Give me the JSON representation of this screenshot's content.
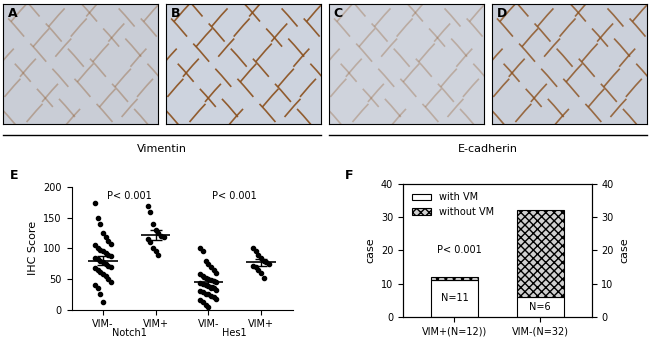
{
  "images": [
    {
      "label": "A"
    },
    {
      "label": "B"
    },
    {
      "label": "C"
    },
    {
      "label": "D"
    }
  ],
  "image_groups": [
    {
      "label": "Vimentin",
      "images": [
        "A",
        "B"
      ]
    },
    {
      "label": "E-cadherin",
      "images": [
        "C",
        "D"
      ]
    }
  ],
  "chart_data": [
    {
      "type": "strip",
      "title": "E",
      "y_label": "IHC Score",
      "categories": [
        "VIM-",
        "VIM+",
        "VIM-",
        "VIM+"
      ],
      "group_labels": [
        "Notch1",
        "Hes1"
      ],
      "annotations": [
        "P< 0.001",
        "P< 0.001"
      ],
      "values": [
        [
          175,
          150,
          140,
          125,
          118,
          112,
          108,
          105,
          100,
          98,
          95,
          92,
          90,
          88,
          85,
          82,
          80,
          78,
          75,
          72,
          70,
          68,
          65,
          62,
          58,
          55,
          50,
          45,
          40,
          35,
          25,
          12
        ],
        [
          170,
          160,
          140,
          130,
          125,
          120,
          118,
          115,
          110,
          100,
          95,
          90
        ],
        [
          100,
          95,
          80,
          75,
          70,
          65,
          60,
          58,
          55,
          52,
          50,
          48,
          46,
          45,
          44,
          42,
          40,
          38,
          36,
          35,
          32,
          30,
          28,
          26,
          25,
          22,
          20,
          18,
          15,
          12,
          8,
          5
        ],
        [
          100,
          95,
          90,
          85,
          80,
          78,
          75,
          72,
          70,
          65,
          60,
          52
        ]
      ],
      "means": [
        80,
        122,
        45,
        77
      ],
      "errors": [
        7,
        8,
        4.5,
        5
      ],
      "color": "#000000",
      "marker": "circle",
      "ylim": [
        0,
        200
      ],
      "yticks": [
        0,
        50,
        100,
        150,
        200
      ]
    },
    {
      "type": "bar",
      "stacked": true,
      "title": "F",
      "categories": [
        "VIM+(N=12))",
        "VIM-(N=32)"
      ],
      "series": [
        {
          "name": "with VM",
          "color": "#ffffff",
          "values": [
            11,
            6
          ],
          "data_labels": true,
          "value_labels": [
            "N=11",
            "N=6"
          ]
        },
        {
          "name": "without VM",
          "color": "#d0d0d0",
          "values": [
            1,
            26
          ]
        }
      ],
      "annotations": [
        "P< 0.001"
      ],
      "legend": "upper left",
      "y_label": "case",
      "y2_label": "case",
      "ylim": [
        0,
        40
      ],
      "yticks": [
        0,
        10,
        20,
        30,
        40
      ],
      "y2lim": [
        0,
        40
      ],
      "y2ticks": [
        0,
        10,
        20,
        30,
        40
      ]
    }
  ]
}
